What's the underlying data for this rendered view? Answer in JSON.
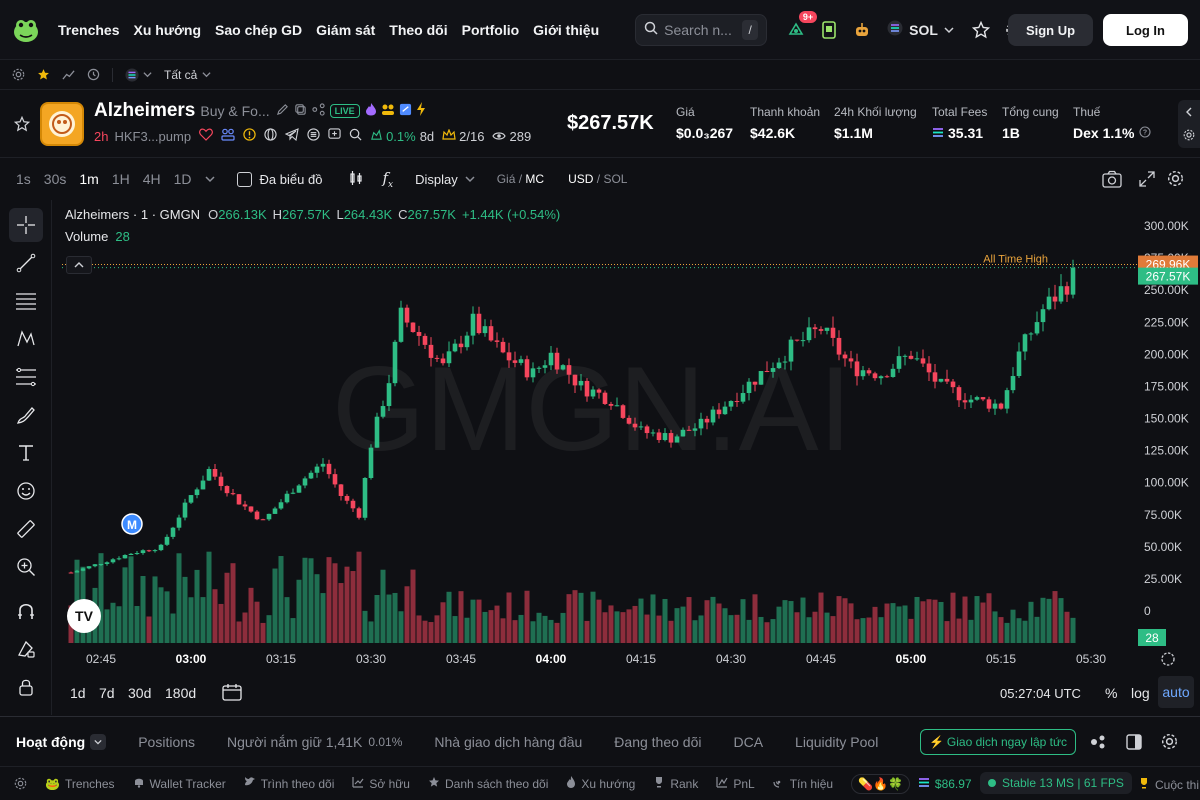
{
  "nav": {
    "items": [
      "Trenches",
      "Xu hướng",
      "Sao chép GD",
      "Giám sát",
      "Theo dõi",
      "Portfolio",
      "Giới thiệu"
    ],
    "search_placeholder": "Search n...",
    "search_kbd": "/",
    "notif_badge": "9+",
    "chain": "SOL",
    "signup": "Sign Up",
    "login": "Log In"
  },
  "subbar": {
    "filter": "Tất cả"
  },
  "token": {
    "name": "Alzheimers",
    "desc": "Buy & Fo...",
    "live": "LIVE",
    "age": "2h",
    "address": "HKF3...pump",
    "pct": "0.1%",
    "pct_age": "8d",
    "ratio": "2/16",
    "views": "289",
    "price_big": "$267.57K",
    "stats": [
      {
        "label": "Giá",
        "value": "$0.0₃267"
      },
      {
        "label": "Thanh khoản",
        "value": "$42.6K"
      },
      {
        "label": "24h Khối lượng",
        "value": "$1.1M"
      },
      {
        "label": "Total Fees",
        "value": "35.31"
      },
      {
        "label": "Tổng cung",
        "value": "1B"
      },
      {
        "label": "Thuế",
        "value": "Dex 1.1%"
      }
    ]
  },
  "toolbar": {
    "timeframes": [
      "1s",
      "30s",
      "1m",
      "1H",
      "4H",
      "1D"
    ],
    "active_tf": "1m",
    "multi_chart": "Đa biểu đồ",
    "display": "Display",
    "price_label": "Giá",
    "mc_label": "MC",
    "usd": "USD",
    "sol": "SOL"
  },
  "legend": {
    "title": "Alzheimers · 1 · GMGN",
    "o": "266.13K",
    "h": "267.57K",
    "l": "264.43K",
    "c": "267.57K",
    "change": "+1.44K (+0.54%)",
    "volume_label": "Volume",
    "volume_value": "28"
  },
  "chart_data": {
    "type": "candlestick",
    "watermark": "GMGN.AI",
    "ylim": [
      0,
      300000
    ],
    "y_ticks": [
      "300.00K",
      "275.00K",
      "250.00K",
      "225.00K",
      "200.00K",
      "175.00K",
      "150.00K",
      "125.00K",
      "100.00K",
      "75.00K",
      "50.00K",
      "25.00K",
      "0"
    ],
    "x_ticks": [
      "02:45",
      "03:00",
      "03:15",
      "03:30",
      "03:45",
      "04:00",
      "04:15",
      "04:30",
      "04:45",
      "05:00",
      "05:15",
      "05:30"
    ],
    "ath_label": "All Time High",
    "ath_value": "269.96K",
    "last_value": "267.57K",
    "volume_last": "28",
    "marker": "M",
    "close_path": [
      [
        "02:40",
        30000
      ],
      [
        "02:50",
        45000
      ],
      [
        "02:55",
        50000
      ],
      [
        "03:00",
        90000
      ],
      [
        "03:03",
        110000
      ],
      [
        "03:08",
        85000
      ],
      [
        "03:12",
        70000
      ],
      [
        "03:18",
        100000
      ],
      [
        "03:22",
        115000
      ],
      [
        "03:25",
        90000
      ],
      [
        "03:28",
        75000
      ],
      [
        "03:30",
        130000
      ],
      [
        "03:33",
        180000
      ],
      [
        "03:35",
        230000
      ],
      [
        "03:38",
        215000
      ],
      [
        "03:42",
        190000
      ],
      [
        "03:47",
        225000
      ],
      [
        "03:52",
        200000
      ],
      [
        "03:57",
        185000
      ],
      [
        "04:00",
        200000
      ],
      [
        "04:05",
        175000
      ],
      [
        "04:10",
        165000
      ],
      [
        "04:15",
        140000
      ],
      [
        "04:20",
        135000
      ],
      [
        "04:25",
        145000
      ],
      [
        "04:30",
        165000
      ],
      [
        "04:35",
        185000
      ],
      [
        "04:40",
        205000
      ],
      [
        "04:45",
        220000
      ],
      [
        "04:50",
        190000
      ],
      [
        "04:55",
        185000
      ],
      [
        "05:00",
        200000
      ],
      [
        "05:05",
        175000
      ],
      [
        "05:10",
        165000
      ],
      [
        "05:15",
        160000
      ],
      [
        "05:18",
        200000
      ],
      [
        "05:22",
        235000
      ],
      [
        "05:26",
        255000
      ],
      [
        "05:27",
        267570
      ]
    ]
  },
  "bottom": {
    "time": "05:27:04 UTC",
    "ranges": [
      "1d",
      "7d",
      "30d",
      "180d"
    ],
    "pct": "%",
    "log": "log",
    "auto": "auto",
    "tabs": [
      "Hoạt động",
      "Positions",
      "Người nắm giữ 1,41K",
      "Nhà giao dịch hàng đầu",
      "Đang theo dõi",
      "DCA",
      "Liquidity Pool"
    ],
    "holders_pct": "0.01%",
    "trade_now": "Giao dịch ngay lập tức"
  },
  "footer": {
    "items": [
      "Trenches",
      "Wallet Tracker",
      "Trình theo dõi",
      "Sở hữu",
      "Danh sách theo dõi",
      "Xu hướng",
      "Rank",
      "PnL",
      "Tín hiệu"
    ],
    "sol_price": "$86.97",
    "status": "Stable 13 MS | 61 FPS",
    "last": "Cuộc thi"
  }
}
